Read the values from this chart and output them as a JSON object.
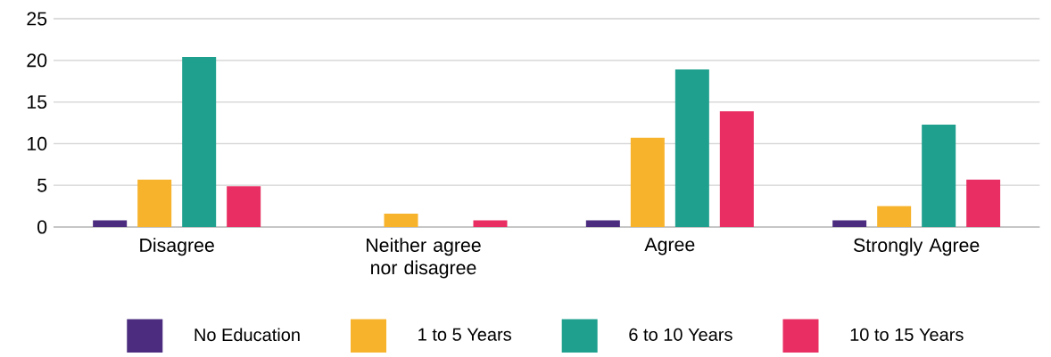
{
  "chart_data": {
    "type": "bar",
    "categories": [
      "Disagree",
      "Neither agree nor disagree",
      "Agree",
      "Strongly Agree"
    ],
    "series": [
      {
        "name": "No Education",
        "color": "#4b2c7f",
        "values": [
          0.8,
          0,
          0.8,
          0.8
        ]
      },
      {
        "name": "1 to 5 Years",
        "color": "#f7b32b",
        "values": [
          5.7,
          1.6,
          10.7,
          2.5
        ]
      },
      {
        "name": "6 to 10 Years",
        "color": "#1fa08e",
        "values": [
          20.4,
          0,
          18.9,
          12.3
        ]
      },
      {
        "name": "10 to 15 Years",
        "color": "#e82e63",
        "values": [
          4.9,
          0.8,
          13.9,
          5.7
        ]
      }
    ],
    "ylim": [
      0,
      25
    ],
    "yticks": [
      0,
      5,
      10,
      15,
      20,
      25
    ],
    "grid": "y",
    "legend": "bottom"
  }
}
